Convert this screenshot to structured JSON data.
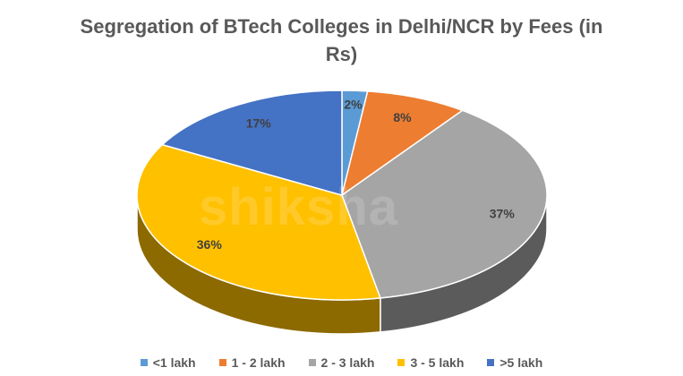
{
  "chart_data": {
    "type": "pie",
    "title_line1": "Segregation of BTech Colleges in Delhi/NCR by Fees (in",
    "title_line2": "Rs)",
    "categories": [
      "<1 lakh",
      "1 - 2 lakh",
      "2 - 3 lakh",
      "3 - 5 lakh",
      ">5 lakh"
    ],
    "values": [
      2,
      8,
      37,
      36,
      17
    ],
    "labels": [
      "2%",
      "8%",
      "37%",
      "36%",
      "17%"
    ],
    "colors": [
      "#5B9BD5",
      "#ED7D31",
      "#A5A5A5",
      "#FFC000",
      "#4472C4"
    ],
    "legend_position": "bottom"
  },
  "watermark": "shiksha"
}
